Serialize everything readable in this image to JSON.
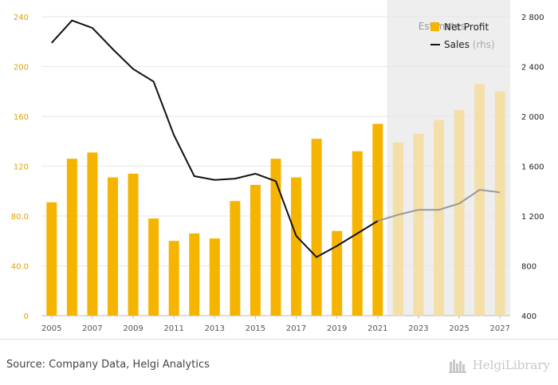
{
  "chart_data": {
    "type": "bar",
    "categories": [
      2005,
      2006,
      2007,
      2008,
      2009,
      2010,
      2011,
      2012,
      2013,
      2014,
      2015,
      2016,
      2017,
      2018,
      2019,
      2020,
      2021,
      2022,
      2023,
      2024,
      2025,
      2026,
      2027
    ],
    "x_tick_labels": [
      "2005",
      "2007",
      "2009",
      "2011",
      "2013",
      "2015",
      "2017",
      "2019",
      "2021",
      "2023",
      "2025",
      "2027"
    ],
    "series": [
      {
        "name": "Net Profit",
        "axis": "left",
        "type": "bar",
        "values": [
          91,
          126,
          131,
          111,
          114,
          78,
          60,
          66,
          62,
          92,
          105,
          126,
          111,
          142,
          68,
          132,
          154,
          139,
          146,
          157,
          165,
          186,
          180
        ]
      },
      {
        "name": "Sales",
        "name_suffix": "(rhs)",
        "axis": "right",
        "type": "line",
        "values": [
          2590,
          2770,
          2710,
          2540,
          2380,
          2280,
          1850,
          1520,
          1490,
          1500,
          1540,
          1480,
          1040,
          870,
          960,
          1060,
          1160,
          1210,
          1250,
          1250,
          1300,
          1410,
          1390
        ]
      }
    ],
    "forecast_from": 2022,
    "estimates_label": "Estimates",
    "ylim_left": [
      0,
      240
    ],
    "yticks_left": [
      "0",
      "40.0",
      "80.0",
      "120",
      "160",
      "200",
      "240"
    ],
    "ylim_right": [
      400,
      2800
    ],
    "yticks_right": [
      "400",
      "800",
      "1 200",
      "1 600",
      "2 000",
      "2 400",
      "2 800"
    ],
    "grid": true,
    "legend_position": "top-right",
    "colors": {
      "bar": "#f5b400",
      "bar_forecast": "#f5dfa8",
      "line": "#111111",
      "line_forecast": "#999999",
      "estimates_bg": "#eeeeee"
    }
  },
  "footer": {
    "source": "Source: Company Data, Helgi Analytics",
    "brand": "HelgiLibrary"
  }
}
